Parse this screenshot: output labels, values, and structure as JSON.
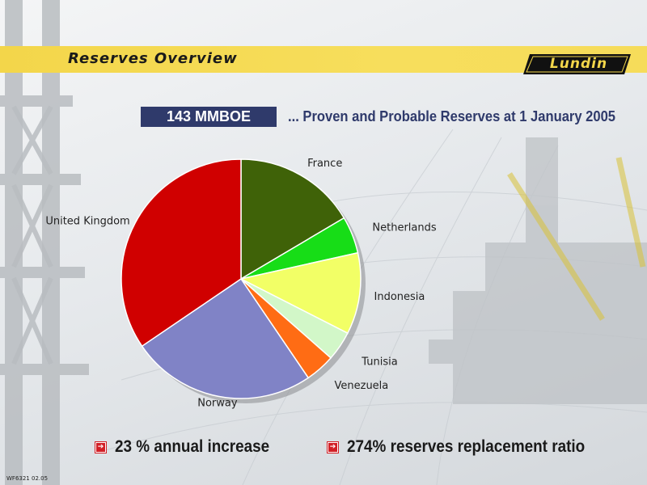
{
  "slide": {
    "title": "Reserves Overview",
    "logo": "Lundin",
    "badge": "143 MMBOE",
    "subtitle": "... Proven and Probable Reserves at 1 January 2005",
    "footnote": "WF6321 02.05"
  },
  "bullets": [
    {
      "text": "23 % annual increase",
      "icon": "arrow-right-icon"
    },
    {
      "text": "274% reserves replacement ratio",
      "icon": "arrow-right-icon"
    }
  ],
  "colors": {
    "band": "#f3d64a",
    "badge": "#2f3a6b",
    "bullet": "#d21f26"
  },
  "chart_data": {
    "type": "pie",
    "start": "12 o'clock",
    "direction": "clockwise",
    "labels_outside": true,
    "shadow": true,
    "slices": [
      {
        "label": "France",
        "value": 16.5,
        "color": "#3f6208"
      },
      {
        "label": "Netherlands",
        "value": 5.0,
        "color": "#17dd17"
      },
      {
        "label": "Indonesia",
        "value": 11.0,
        "color": "#f2ff66"
      },
      {
        "label": "Tunisia",
        "value": 4.0,
        "color": "#d2f7c8"
      },
      {
        "label": "Venezuela",
        "value": 4.0,
        "color": "#ff6c14"
      },
      {
        "label": "Norway",
        "value": 25.0,
        "color": "#8083c6"
      },
      {
        "label": "United Kingdom",
        "value": 34.5,
        "color": "#d00000"
      }
    ]
  }
}
